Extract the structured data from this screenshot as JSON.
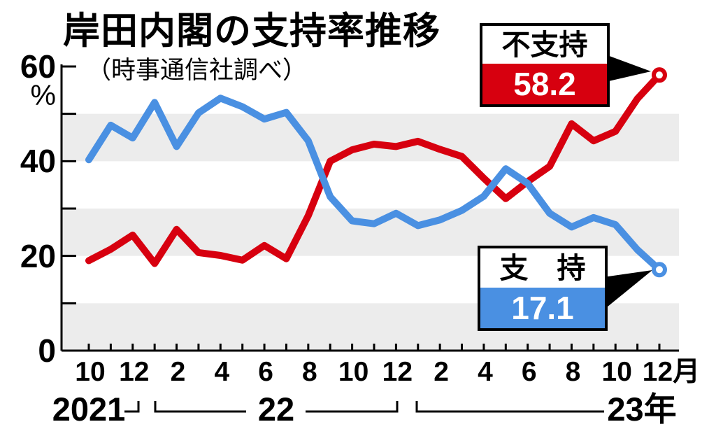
{
  "title": "岸田内閣の支持率推移",
  "subtitle": "（時事通信社調べ）",
  "y_axis": {
    "unit": "%",
    "ticks": [
      {
        "label": "60",
        "value": 60
      },
      {
        "label": "40",
        "value": 40
      },
      {
        "label": "20",
        "value": 20
      },
      {
        "label": "0",
        "value": 0
      }
    ],
    "minor_step": 10
  },
  "x_axis": {
    "tick_labels": [
      "10",
      "12",
      "2",
      "4",
      "6",
      "8",
      "10",
      "12",
      "2",
      "4",
      "6",
      "8",
      "10",
      "12月"
    ],
    "years": [
      {
        "label": "2021"
      },
      {
        "label": "22"
      },
      {
        "label": "23年"
      }
    ]
  },
  "chart_data": {
    "type": "line",
    "x_months": [
      "2021-10",
      "2021-11",
      "2021-12",
      "2022-01",
      "2022-02",
      "2022-03",
      "2022-04",
      "2022-05",
      "2022-06",
      "2022-07",
      "2022-08",
      "2022-09",
      "2022-10",
      "2022-11",
      "2022-12",
      "2023-01",
      "2023-02",
      "2023-03",
      "2023-04",
      "2023-05",
      "2023-06",
      "2023-07",
      "2023-08",
      "2023-09",
      "2023-10",
      "2023-11",
      "2023-12"
    ],
    "ylim": [
      0,
      60
    ],
    "band_color": "#ececec",
    "series": [
      {
        "name": "不支持",
        "color": "#d7000f",
        "values": [
          19.0,
          21.4,
          24.4,
          18.4,
          25.6,
          20.7,
          20.1,
          19.1,
          22.2,
          19.4,
          28.5,
          40.0,
          42.4,
          43.6,
          43.1,
          44.2,
          42.5,
          41.0,
          36.4,
          32.1,
          35.7,
          38.9,
          47.9,
          44.3,
          46.3,
          53.2,
          58.2
        ]
      },
      {
        "name": "支持",
        "color": "#4a90e2",
        "values": [
          40.3,
          47.6,
          44.9,
          52.4,
          43.1,
          50.2,
          53.3,
          51.5,
          48.9,
          50.3,
          44.3,
          32.5,
          27.4,
          26.8,
          29.0,
          26.4,
          27.6,
          29.6,
          32.6,
          38.4,
          35.3,
          29.0,
          26.1,
          28.1,
          26.6,
          21.3,
          17.1
        ]
      }
    ]
  },
  "callouts": {
    "disapprove": {
      "label": "不支持",
      "value": "58.2",
      "color": "#d7000f"
    },
    "approve": {
      "label": "支　持",
      "value": "17.1",
      "color": "#4a90e2"
    }
  }
}
